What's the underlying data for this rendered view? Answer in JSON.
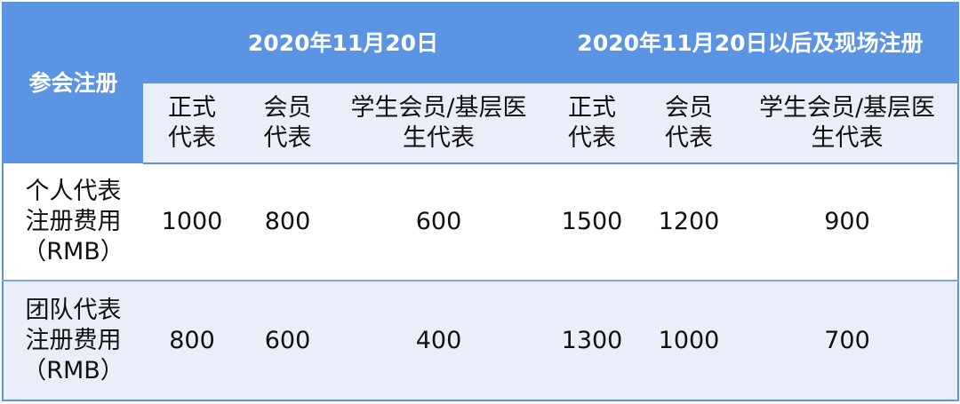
{
  "header": {
    "corner": "参会注册",
    "groups": [
      "2020年11月20日",
      "2020年11月20日以后及现场注册"
    ],
    "columns": [
      "正式\n代表",
      "会员\n代表",
      "学生会员/基层医\n生代表",
      "正式\n代表",
      "会员\n代表",
      "学生会员/基层医\n生代表"
    ]
  },
  "rows": [
    {
      "label": "个人代表\n注册费用\n（RMB）",
      "values": [
        "1000",
        "800",
        "600",
        "1500",
        "1200",
        "900"
      ]
    },
    {
      "label": "团队代表\n注册费用\n（RMB）",
      "values": [
        "800",
        "600",
        "400",
        "1300",
        "1000",
        "700"
      ]
    }
  ],
  "colors": {
    "header_blue": "#5b94e3",
    "light_row": "#e9eef8"
  }
}
